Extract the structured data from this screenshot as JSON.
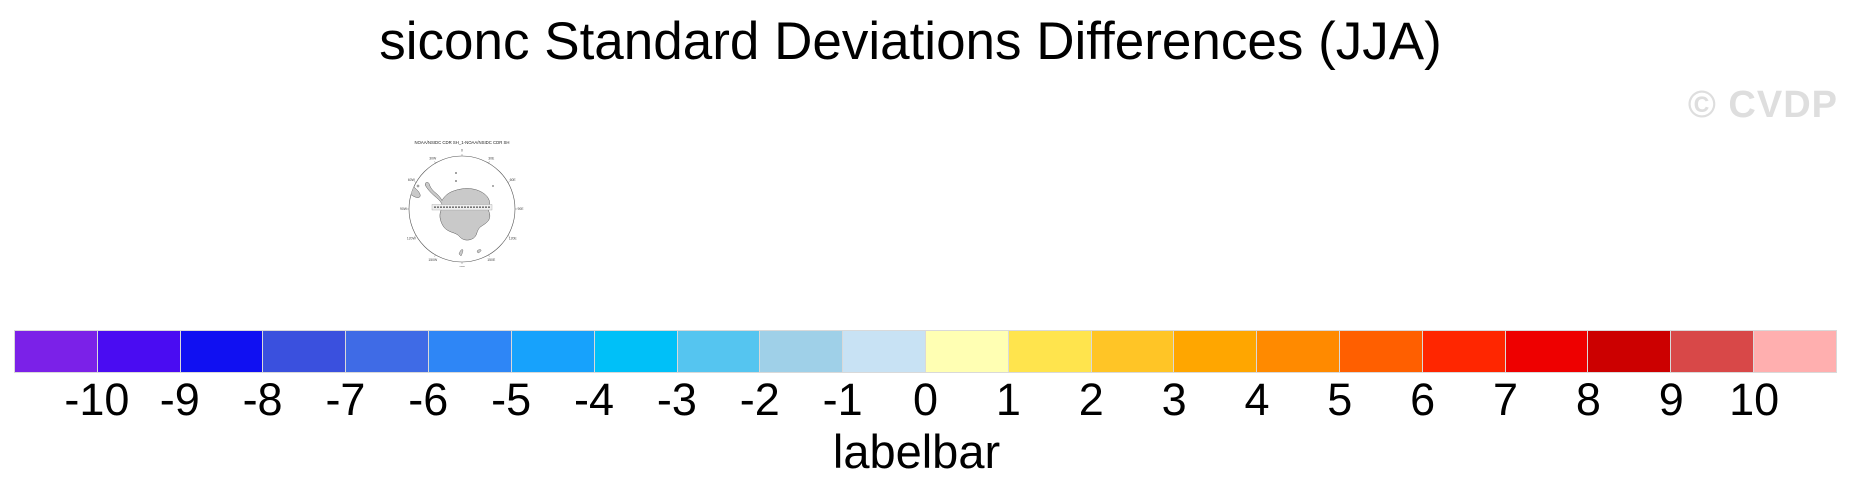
{
  "page": {
    "title": "siconc Standard Deviations Differences (JJA)",
    "watermark": "© CVDP"
  },
  "map": {
    "title": "NOAA/NSIDC CDR SH_1-NOAA/NSIDC CDR SH",
    "land_color": "#c9c9c9",
    "outline_color": "#555555",
    "ring_labels": [
      {
        "text": "0",
        "angle": 0
      },
      {
        "text": "30E",
        "angle": 30
      },
      {
        "text": "60E",
        "angle": 60
      },
      {
        "text": "90E",
        "angle": 90
      },
      {
        "text": "120E",
        "angle": 120
      },
      {
        "text": "150E",
        "angle": 150
      },
      {
        "text": "180",
        "angle": 180
      },
      {
        "text": "150W",
        "angle": 210
      },
      {
        "text": "120W",
        "angle": 240
      },
      {
        "text": "90W",
        "angle": 270
      },
      {
        "text": "60W",
        "angle": 300
      },
      {
        "text": "30W",
        "angle": 330
      }
    ]
  },
  "chart_data": {
    "type": "heatmap",
    "title": "siconc Standard Deviations Differences (JJA)",
    "map_subtitle": "NOAA/NSIDC CDR SH_1-NOAA/NSIDC CDR SH",
    "colorbar_label": "labelbar",
    "legend_position": "bottom",
    "levels": [
      -10,
      -9,
      -8,
      -7,
      -6,
      -5,
      -4,
      -3,
      -2,
      -1,
      0,
      1,
      2,
      3,
      4,
      5,
      6,
      7,
      8,
      9,
      10
    ],
    "tick_labels": [
      "-10",
      "-9",
      "-8",
      "-7",
      "-6",
      "-5",
      "-4",
      "-3",
      "-2",
      "-1",
      "0",
      "1",
      "2",
      "3",
      "4",
      "5",
      "6",
      "7",
      "8",
      "9",
      "10"
    ],
    "colors": [
      "#7B21E8",
      "#4A0CF2",
      "#1010F2",
      "#3A50DE",
      "#3F6BE6",
      "#2E86F6",
      "#17A2FC",
      "#00C0F8",
      "#55C5F0",
      "#9FD0E8",
      "#C8E2F4",
      "#FFFFB3",
      "#FFE44D",
      "#FFC526",
      "#FFA600",
      "#FF8A00",
      "#FF5F00",
      "#FF2600",
      "#EE0000",
      "#CC0000",
      "#D84848",
      "#FFAFAF"
    ],
    "watermark_color": "#dedede"
  }
}
